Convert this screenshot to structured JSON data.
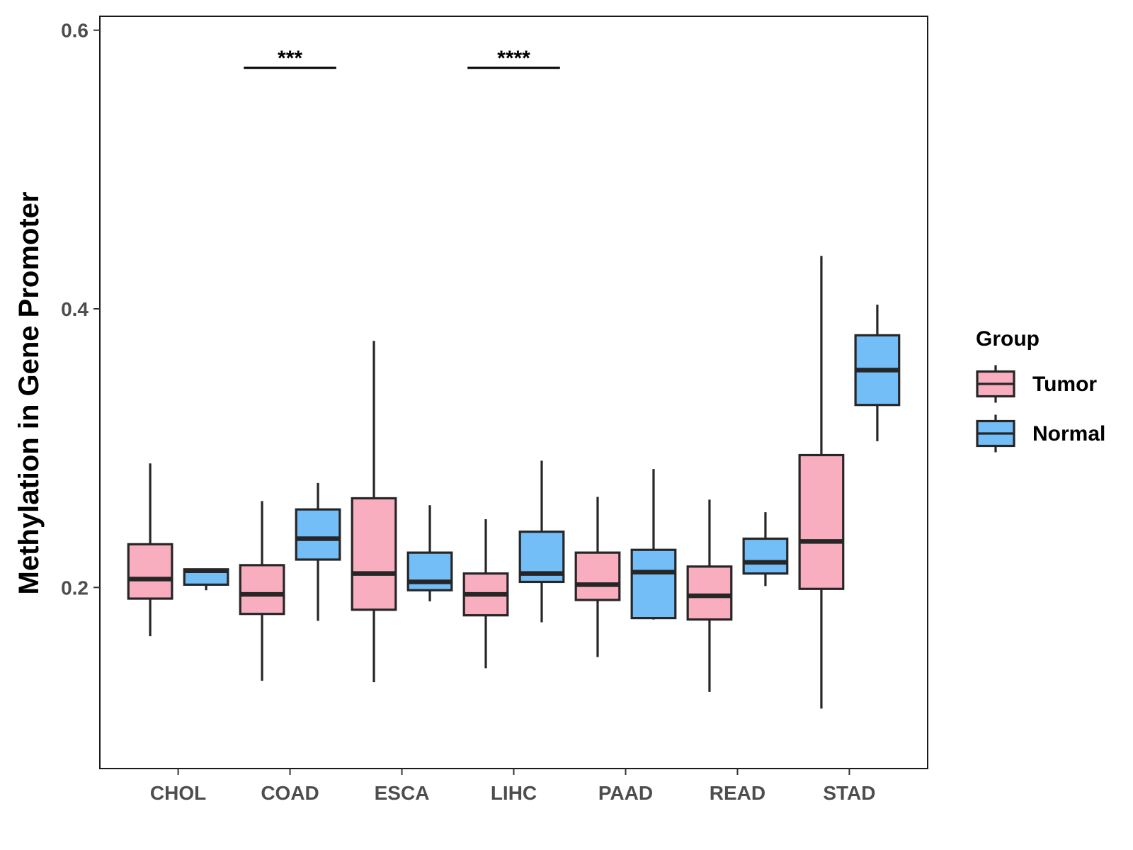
{
  "chart_data": {
    "type": "boxplot",
    "title": "",
    "xlabel": "",
    "ylabel": "Methylation in Gene Promoter",
    "ylim": [
      0.07,
      0.61
    ],
    "yticks": [
      0.2,
      0.4,
      0.6
    ],
    "ytick_labels": [
      "0.2",
      "0.4",
      "0.6"
    ],
    "categories": [
      "CHOL",
      "COAD",
      "ESCA",
      "LIHC",
      "PAAD",
      "READ",
      "STAD"
    ],
    "legend": {
      "title": "Group",
      "position": "right",
      "entries": [
        "Tumor",
        "Normal"
      ]
    },
    "series": [
      {
        "name": "Tumor",
        "color": "#f9aec0",
        "boxes": [
          {
            "min": 0.165,
            "q1": 0.192,
            "median": 0.206,
            "q3": 0.231,
            "max": 0.289
          },
          {
            "min": 0.133,
            "q1": 0.181,
            "median": 0.195,
            "q3": 0.216,
            "max": 0.262
          },
          {
            "min": 0.132,
            "q1": 0.184,
            "median": 0.21,
            "q3": 0.264,
            "max": 0.377
          },
          {
            "min": 0.142,
            "q1": 0.18,
            "median": 0.195,
            "q3": 0.21,
            "max": 0.249
          },
          {
            "min": 0.15,
            "q1": 0.191,
            "median": 0.202,
            "q3": 0.225,
            "max": 0.265
          },
          {
            "min": 0.125,
            "q1": 0.177,
            "median": 0.194,
            "q3": 0.215,
            "max": 0.263
          },
          {
            "min": 0.113,
            "q1": 0.199,
            "median": 0.233,
            "q3": 0.295,
            "max": 0.438
          }
        ]
      },
      {
        "name": "Normal",
        "color": "#74bef8",
        "boxes": [
          {
            "min": 0.198,
            "q1": 0.202,
            "median": 0.212,
            "q3": 0.213,
            "max": 0.213
          },
          {
            "min": 0.176,
            "q1": 0.22,
            "median": 0.235,
            "q3": 0.256,
            "max": 0.275
          },
          {
            "min": 0.19,
            "q1": 0.198,
            "median": 0.204,
            "q3": 0.225,
            "max": 0.259
          },
          {
            "min": 0.175,
            "q1": 0.204,
            "median": 0.21,
            "q3": 0.24,
            "max": 0.291
          },
          {
            "min": 0.177,
            "q1": 0.178,
            "median": 0.211,
            "q3": 0.227,
            "max": 0.285
          },
          {
            "min": 0.201,
            "q1": 0.21,
            "median": 0.218,
            "q3": 0.235,
            "max": 0.254
          },
          {
            "min": 0.305,
            "q1": 0.331,
            "median": 0.356,
            "q3": 0.381,
            "max": 0.403
          }
        ]
      }
    ],
    "annotations": [
      {
        "category": "COAD",
        "label": "***",
        "y": 0.573
      },
      {
        "category": "LIHC",
        "label": "****",
        "y": 0.573
      }
    ],
    "grid": false
  }
}
